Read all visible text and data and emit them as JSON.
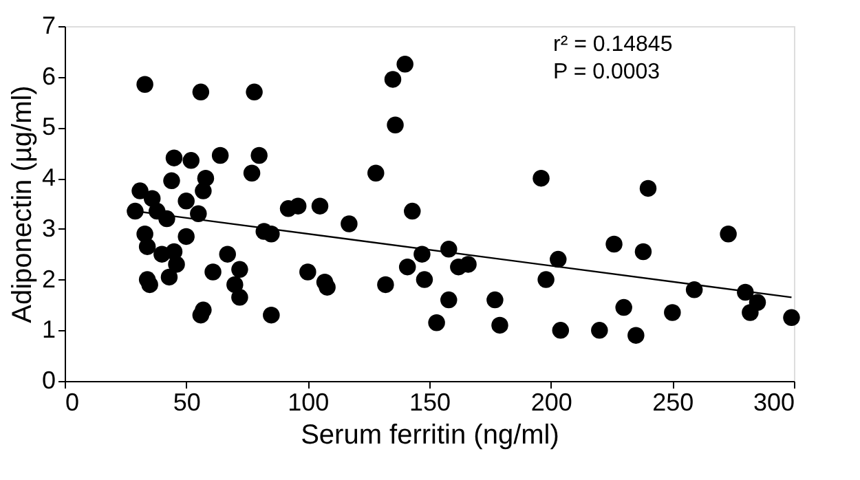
{
  "chart_data": {
    "type": "scatter",
    "xlabel": "Serum ferritin (ng/ml)",
    "ylabel": "Adiponectin (µg/ml)",
    "annotations": [
      "r² = 0.14845",
      "P = 0.0003"
    ],
    "xlim": [
      0,
      300
    ],
    "ylim": [
      0,
      7
    ],
    "xticks": [
      0,
      50,
      100,
      150,
      200,
      250,
      300
    ],
    "yticks": [
      0,
      1,
      2,
      3,
      4,
      5,
      6,
      7
    ],
    "grid": false,
    "marker": "circle",
    "series": [
      {
        "color": "#000000",
        "x": [
          33,
          56,
          78,
          29,
          31,
          33,
          34,
          35,
          34,
          36,
          38,
          40,
          42,
          43,
          45,
          44,
          46,
          45,
          50,
          50,
          52,
          55,
          57,
          58,
          56,
          57,
          61,
          64,
          67,
          70,
          72,
          72,
          77,
          80,
          82,
          85,
          85,
          92,
          96,
          100,
          105,
          107,
          108,
          117,
          128,
          132,
          135,
          136,
          140,
          141,
          143,
          147,
          148,
          153,
          158,
          158,
          162,
          166,
          177,
          179,
          196,
          198,
          203,
          204,
          220,
          226,
          230,
          235,
          238,
          240,
          250,
          259,
          273,
          280,
          282,
          285,
          299
        ],
        "values": [
          5.85,
          5.7,
          5.7,
          3.35,
          3.75,
          2.9,
          2.0,
          1.9,
          2.65,
          3.6,
          3.35,
          2.5,
          3.2,
          2.05,
          2.55,
          3.95,
          2.3,
          4.4,
          3.55,
          2.85,
          4.35,
          3.3,
          3.75,
          4.0,
          1.3,
          1.4,
          2.15,
          4.45,
          2.5,
          1.9,
          2.2,
          1.65,
          4.1,
          4.45,
          2.95,
          2.9,
          1.3,
          3.4,
          3.45,
          2.15,
          3.45,
          1.95,
          1.85,
          3.1,
          4.1,
          1.9,
          5.95,
          5.05,
          6.25,
          2.25,
          3.35,
          2.5,
          2.0,
          1.15,
          2.6,
          1.6,
          2.25,
          2.3,
          1.6,
          1.1,
          4.0,
          2.0,
          2.4,
          1.0,
          1.0,
          2.7,
          1.45,
          0.9,
          2.55,
          3.8,
          1.35,
          1.8,
          2.9,
          1.75,
          1.35,
          1.55,
          1.25
        ]
      },
      {
        "type": "line",
        "color": "#000000",
        "marker": "none",
        "line_style": "solid",
        "x": [
          29,
          299
        ],
        "values": [
          3.35,
          1.65
        ]
      }
    ]
  }
}
